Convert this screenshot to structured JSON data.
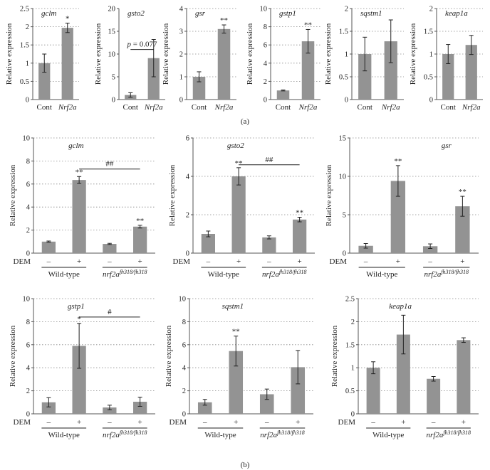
{
  "figure": {
    "panel_a_label": "(a)",
    "panel_b_label": "(b)",
    "ylabel": "Relative expression",
    "dem_label": "DEM",
    "group_labels": {
      "wild_type": "Wild-type",
      "mutant_base": "nrf2a",
      "mutant_sup": "fh318/fh318"
    },
    "cont_label": "Cont",
    "nrf2a_label": "Nrf2a",
    "minus_label": "–",
    "plus_label": "+"
  },
  "chart_data": [
    {
      "type": "bar",
      "panel": "a",
      "title": "gclm",
      "categories": [
        "Cont",
        "Nrf2a"
      ],
      "values": [
        1.0,
        1.97
      ],
      "errors": [
        0.25,
        0.13
      ],
      "stars": [
        "",
        "*"
      ],
      "ylim": [
        0,
        2.5
      ],
      "yticks": [
        0,
        0.5,
        1,
        1.5,
        2,
        2.5
      ],
      "ylabel": "Relative expression",
      "grid": true
    },
    {
      "type": "bar",
      "panel": "a",
      "title": "gsto2",
      "categories": [
        "Cont",
        "Nrf2a"
      ],
      "values": [
        1.0,
        9.1
      ],
      "errors": [
        0.5,
        4.1
      ],
      "stars": [
        "",
        ""
      ],
      "bracket": {
        "text": "p = 0.077",
        "y": 11.0
      },
      "ylim": [
        0,
        20
      ],
      "yticks": [
        0,
        5,
        10,
        15,
        20
      ],
      "ylabel": "Relative expression",
      "grid": false
    },
    {
      "type": "bar",
      "panel": "a",
      "title": "gsr",
      "categories": [
        "Cont",
        "Nrf2a"
      ],
      "values": [
        1.0,
        3.1
      ],
      "errors": [
        0.22,
        0.18
      ],
      "stars": [
        "",
        "**"
      ],
      "ylim": [
        0,
        4
      ],
      "yticks": [
        0,
        1,
        2,
        3,
        4
      ],
      "ylabel": "Relative expression",
      "grid": true
    },
    {
      "type": "bar",
      "panel": "a",
      "title": "gstp1",
      "categories": [
        "Cont",
        "Nrf2a"
      ],
      "values": [
        1.0,
        6.4
      ],
      "errors": [
        0.05,
        1.3
      ],
      "stars": [
        "",
        "**"
      ],
      "ylim": [
        0,
        10
      ],
      "yticks": [
        0,
        2,
        4,
        6,
        8,
        10
      ],
      "ylabel": "Relative expression",
      "grid": true
    },
    {
      "type": "bar",
      "panel": "a",
      "title": "sqstm1",
      "categories": [
        "Cont",
        "Nrf2a"
      ],
      "values": [
        1.0,
        1.28
      ],
      "errors": [
        0.37,
        0.47
      ],
      "stars": [
        "",
        ""
      ],
      "ylim": [
        0,
        2
      ],
      "yticks": [
        0,
        0.5,
        1,
        1.5,
        2
      ],
      "ylabel": "Relative expression",
      "grid": true
    },
    {
      "type": "bar",
      "panel": "a",
      "title": "keap1a",
      "categories": [
        "Cont",
        "Nrf2a"
      ],
      "values": [
        1.0,
        1.2
      ],
      "errors": [
        0.21,
        0.21
      ],
      "stars": [
        "",
        ""
      ],
      "ylim": [
        0,
        2
      ],
      "yticks": [
        0,
        0.5,
        1,
        1.5,
        2
      ],
      "ylabel": "Relative expression",
      "grid": true
    },
    {
      "type": "bar",
      "panel": "b",
      "title": "gclm",
      "dem": [
        "–",
        "+",
        "–",
        "+"
      ],
      "values": [
        1.0,
        6.35,
        0.8,
        2.3
      ],
      "errors": [
        0.05,
        0.3,
        0.05,
        0.12
      ],
      "stars": [
        "",
        "**",
        "",
        "**"
      ],
      "bracket": {
        "text": "##",
        "y": 7.3
      },
      "ylim": [
        0,
        10
      ],
      "yticks": [
        0,
        2,
        4,
        6,
        8,
        10
      ],
      "ylabel": "Relative expression",
      "grid": true
    },
    {
      "type": "bar",
      "panel": "b",
      "title": "gsto2",
      "dem": [
        "–",
        "+",
        "–",
        "+"
      ],
      "values": [
        1.0,
        4.0,
        0.82,
        1.75
      ],
      "errors": [
        0.15,
        0.45,
        0.08,
        0.12
      ],
      "stars": [
        "",
        "**",
        "",
        "**"
      ],
      "bracket": {
        "text": "##",
        "y": 4.6
      },
      "ylim": [
        0,
        6
      ],
      "yticks": [
        0,
        2,
        4,
        6
      ],
      "ylabel": "Relative expression",
      "grid": true
    },
    {
      "type": "bar",
      "panel": "b",
      "title": "gsr",
      "dem": [
        "–",
        "+",
        "–",
        "+"
      ],
      "values": [
        0.95,
        9.4,
        0.9,
        6.1
      ],
      "errors": [
        0.3,
        2.0,
        0.3,
        1.3
      ],
      "stars": [
        "",
        "**",
        "",
        "**"
      ],
      "ylim": [
        0,
        15
      ],
      "yticks": [
        0,
        5,
        10,
        15
      ],
      "ylabel": "Relative expression",
      "grid": true
    },
    {
      "type": "bar",
      "panel": "b",
      "title": "gstp1",
      "dem": [
        "–",
        "+",
        "–",
        "+"
      ],
      "values": [
        1.0,
        5.9,
        0.55,
        1.05
      ],
      "errors": [
        0.4,
        1.95,
        0.2,
        0.4
      ],
      "stars": [
        "",
        "*",
        "",
        ""
      ],
      "bracket": {
        "text": "#",
        "y": 8.4
      },
      "ylim": [
        0,
        10
      ],
      "yticks": [
        0,
        2,
        4,
        6,
        8,
        10
      ],
      "ylabel": "Relative expression",
      "grid": true
    },
    {
      "type": "bar",
      "panel": "b",
      "title": "sqstm1",
      "dem": [
        "–",
        "+",
        "–",
        "+"
      ],
      "values": [
        1.0,
        5.45,
        1.7,
        4.05
      ],
      "errors": [
        0.25,
        1.3,
        0.45,
        1.45
      ],
      "stars": [
        "",
        "**",
        "",
        ""
      ],
      "ylim": [
        0,
        10
      ],
      "yticks": [
        0,
        2,
        4,
        6,
        8,
        10
      ],
      "ylabel": "Relative expression",
      "grid": true
    },
    {
      "type": "bar",
      "panel": "b",
      "title": "keap1a",
      "dem": [
        "–",
        "+",
        "–",
        "+"
      ],
      "values": [
        1.0,
        1.72,
        0.76,
        1.6
      ],
      "errors": [
        0.13,
        0.42,
        0.05,
        0.05
      ],
      "stars": [
        "",
        "",
        "",
        ""
      ],
      "ylim": [
        0,
        2.5
      ],
      "yticks": [
        0,
        0.5,
        1,
        1.5,
        2,
        2.5
      ],
      "ylabel": "Relative expression",
      "grid": true
    }
  ]
}
